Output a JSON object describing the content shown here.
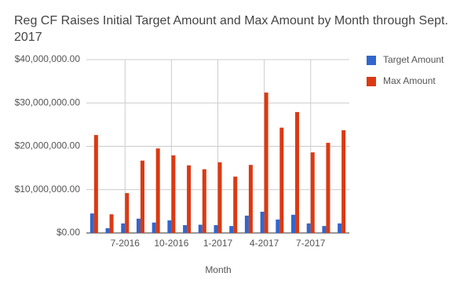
{
  "chart_data": {
    "type": "bar",
    "title": "Reg CF Raises Initial Target Amount and Max Amount by Month through Sept. 2017",
    "x_label": "Month",
    "categories": [
      null,
      null,
      "7-2016",
      null,
      null,
      "10-2016",
      null,
      null,
      "1-2017",
      null,
      null,
      "4-2017",
      null,
      null,
      "7-2017",
      null,
      null
    ],
    "series": [
      {
        "name": "Target Amount",
        "color": "#3366cc",
        "values": [
          4500000,
          1100000,
          2200000,
          3300000,
          2400000,
          2900000,
          1800000,
          1900000,
          1800000,
          1600000,
          4000000,
          4900000,
          3100000,
          4200000,
          2200000,
          1600000,
          2200000
        ]
      },
      {
        "name": "Max Amount",
        "color": "#dc3912",
        "values": [
          22600000,
          4300000,
          9200000,
          16700000,
          19500000,
          17900000,
          15600000,
          14700000,
          16300000,
          13000000,
          15700000,
          32400000,
          24300000,
          27900000,
          18600000,
          20800000,
          23700000
        ]
      }
    ],
    "ylim": [
      0,
      40000000
    ],
    "yticks": [
      {
        "value": 0,
        "label": "$0.00"
      },
      {
        "value": 10000000,
        "label": "$10,000,000.00"
      },
      {
        "value": 20000000,
        "label": "$20,000,000.00"
      },
      {
        "value": 30000000,
        "label": "$30,000,000.00"
      },
      {
        "value": 40000000,
        "label": "$40,000,000.00"
      }
    ],
    "grid": true,
    "legend_position": "right"
  }
}
